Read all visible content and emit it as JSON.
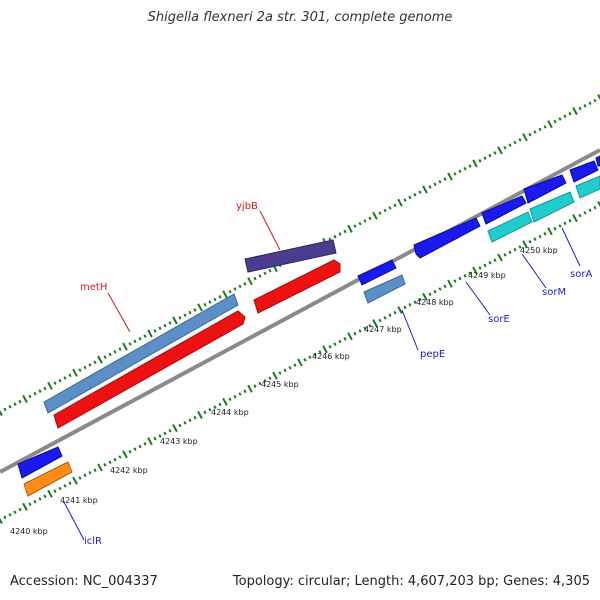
{
  "title": "Shigella flexneri 2a str. 301, complete genome",
  "footer": {
    "accession": "Accession: NC_004337",
    "summary": "Topology: circular; Length: 4,607,203 bp; Genes: 4,305"
  },
  "colors": {
    "backbone": "#808080",
    "ticks": "#1a7a1a",
    "label_text": "#1c1ccc",
    "label_text_red": "#cc1c1c",
    "kbp_text": "#222222"
  },
  "kbp_labels": [
    "4240 kbp",
    "4241 kbp",
    "4242 kbp",
    "4243 kbp",
    "4244 kbp",
    "4245 kbp",
    "4246 kbp",
    "4247 kbp",
    "4248 kbp",
    "4249 kbp",
    "4250 kbp"
  ],
  "features": [
    {
      "name": "metH",
      "color": "#5b8fc6",
      "row": "top1"
    },
    {
      "name": "metH_cds",
      "color": "#ee1111",
      "row": "top2"
    },
    {
      "name": "yjbB",
      "color": "#4a3d8f",
      "row": "top1"
    },
    {
      "name": "yjbB_cds",
      "color": "#ee1111",
      "row": "top2"
    },
    {
      "name": "pepE",
      "color": "#5b8fc6",
      "row": "bot2"
    },
    {
      "name": "pepE_cds",
      "color": "#1a1aee",
      "row": "bot1"
    },
    {
      "name": "sorE",
      "color": "#1a1aee",
      "row": "bot1"
    },
    {
      "name": "sorM",
      "color": "#22cccc",
      "row": "bot2"
    },
    {
      "name": "sorA",
      "color": "#22cccc",
      "row": "bot2"
    },
    {
      "name": "iclR",
      "color": "#ff8c1a",
      "row": "bot2"
    },
    {
      "name": "iclR_cds",
      "color": "#1a1aee",
      "row": "bot1"
    }
  ],
  "gene_labels": [
    "metH",
    "yjbB",
    "pepE",
    "sorE",
    "sorM",
    "sorA",
    "iclR"
  ]
}
